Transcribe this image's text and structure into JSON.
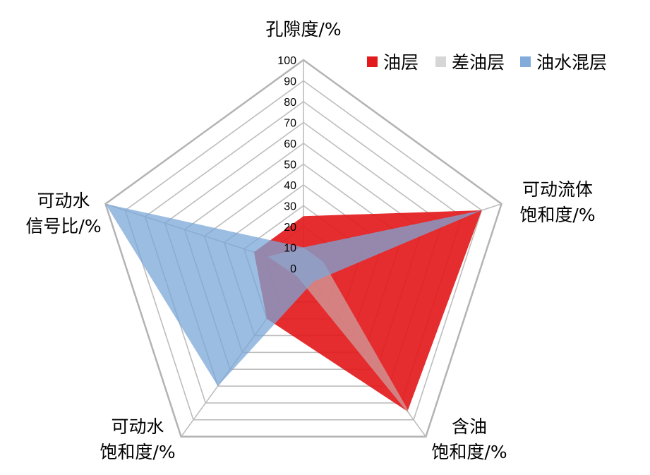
{
  "chart_data": {
    "type": "radar",
    "axes": [
      {
        "lines": [
          "孔隙度/%"
        ]
      },
      {
        "lines": [
          "可动流体",
          "饱和度/%"
        ]
      },
      {
        "lines": [
          "含油",
          "饱和度/%"
        ]
      },
      {
        "lines": [
          "可动水",
          "饱和度/%"
        ]
      },
      {
        "lines": [
          "可动水",
          "信号比/%"
        ]
      }
    ],
    "r_ticks": [
      "0",
      "10",
      "20",
      "30",
      "40",
      "50",
      "60",
      "70",
      "80",
      "90",
      "100"
    ],
    "rlim": [
      0,
      100
    ],
    "grid": true,
    "legend_position": "top-right",
    "series": [
      {
        "name": "油层",
        "color": "#e31a1c",
        "opacity": 0.92,
        "values": [
          25,
          90,
          85,
          30,
          25
        ]
      },
      {
        "name": "差油层",
        "color": "#c8c8c8",
        "opacity": 0.55,
        "values": [
          10,
          10,
          90,
          5,
          18
        ]
      },
      {
        "name": "油水混层",
        "color": "#7ba7d8",
        "opacity": 0.75,
        "values": [
          10,
          90,
          8,
          70,
          100
        ]
      }
    ]
  }
}
